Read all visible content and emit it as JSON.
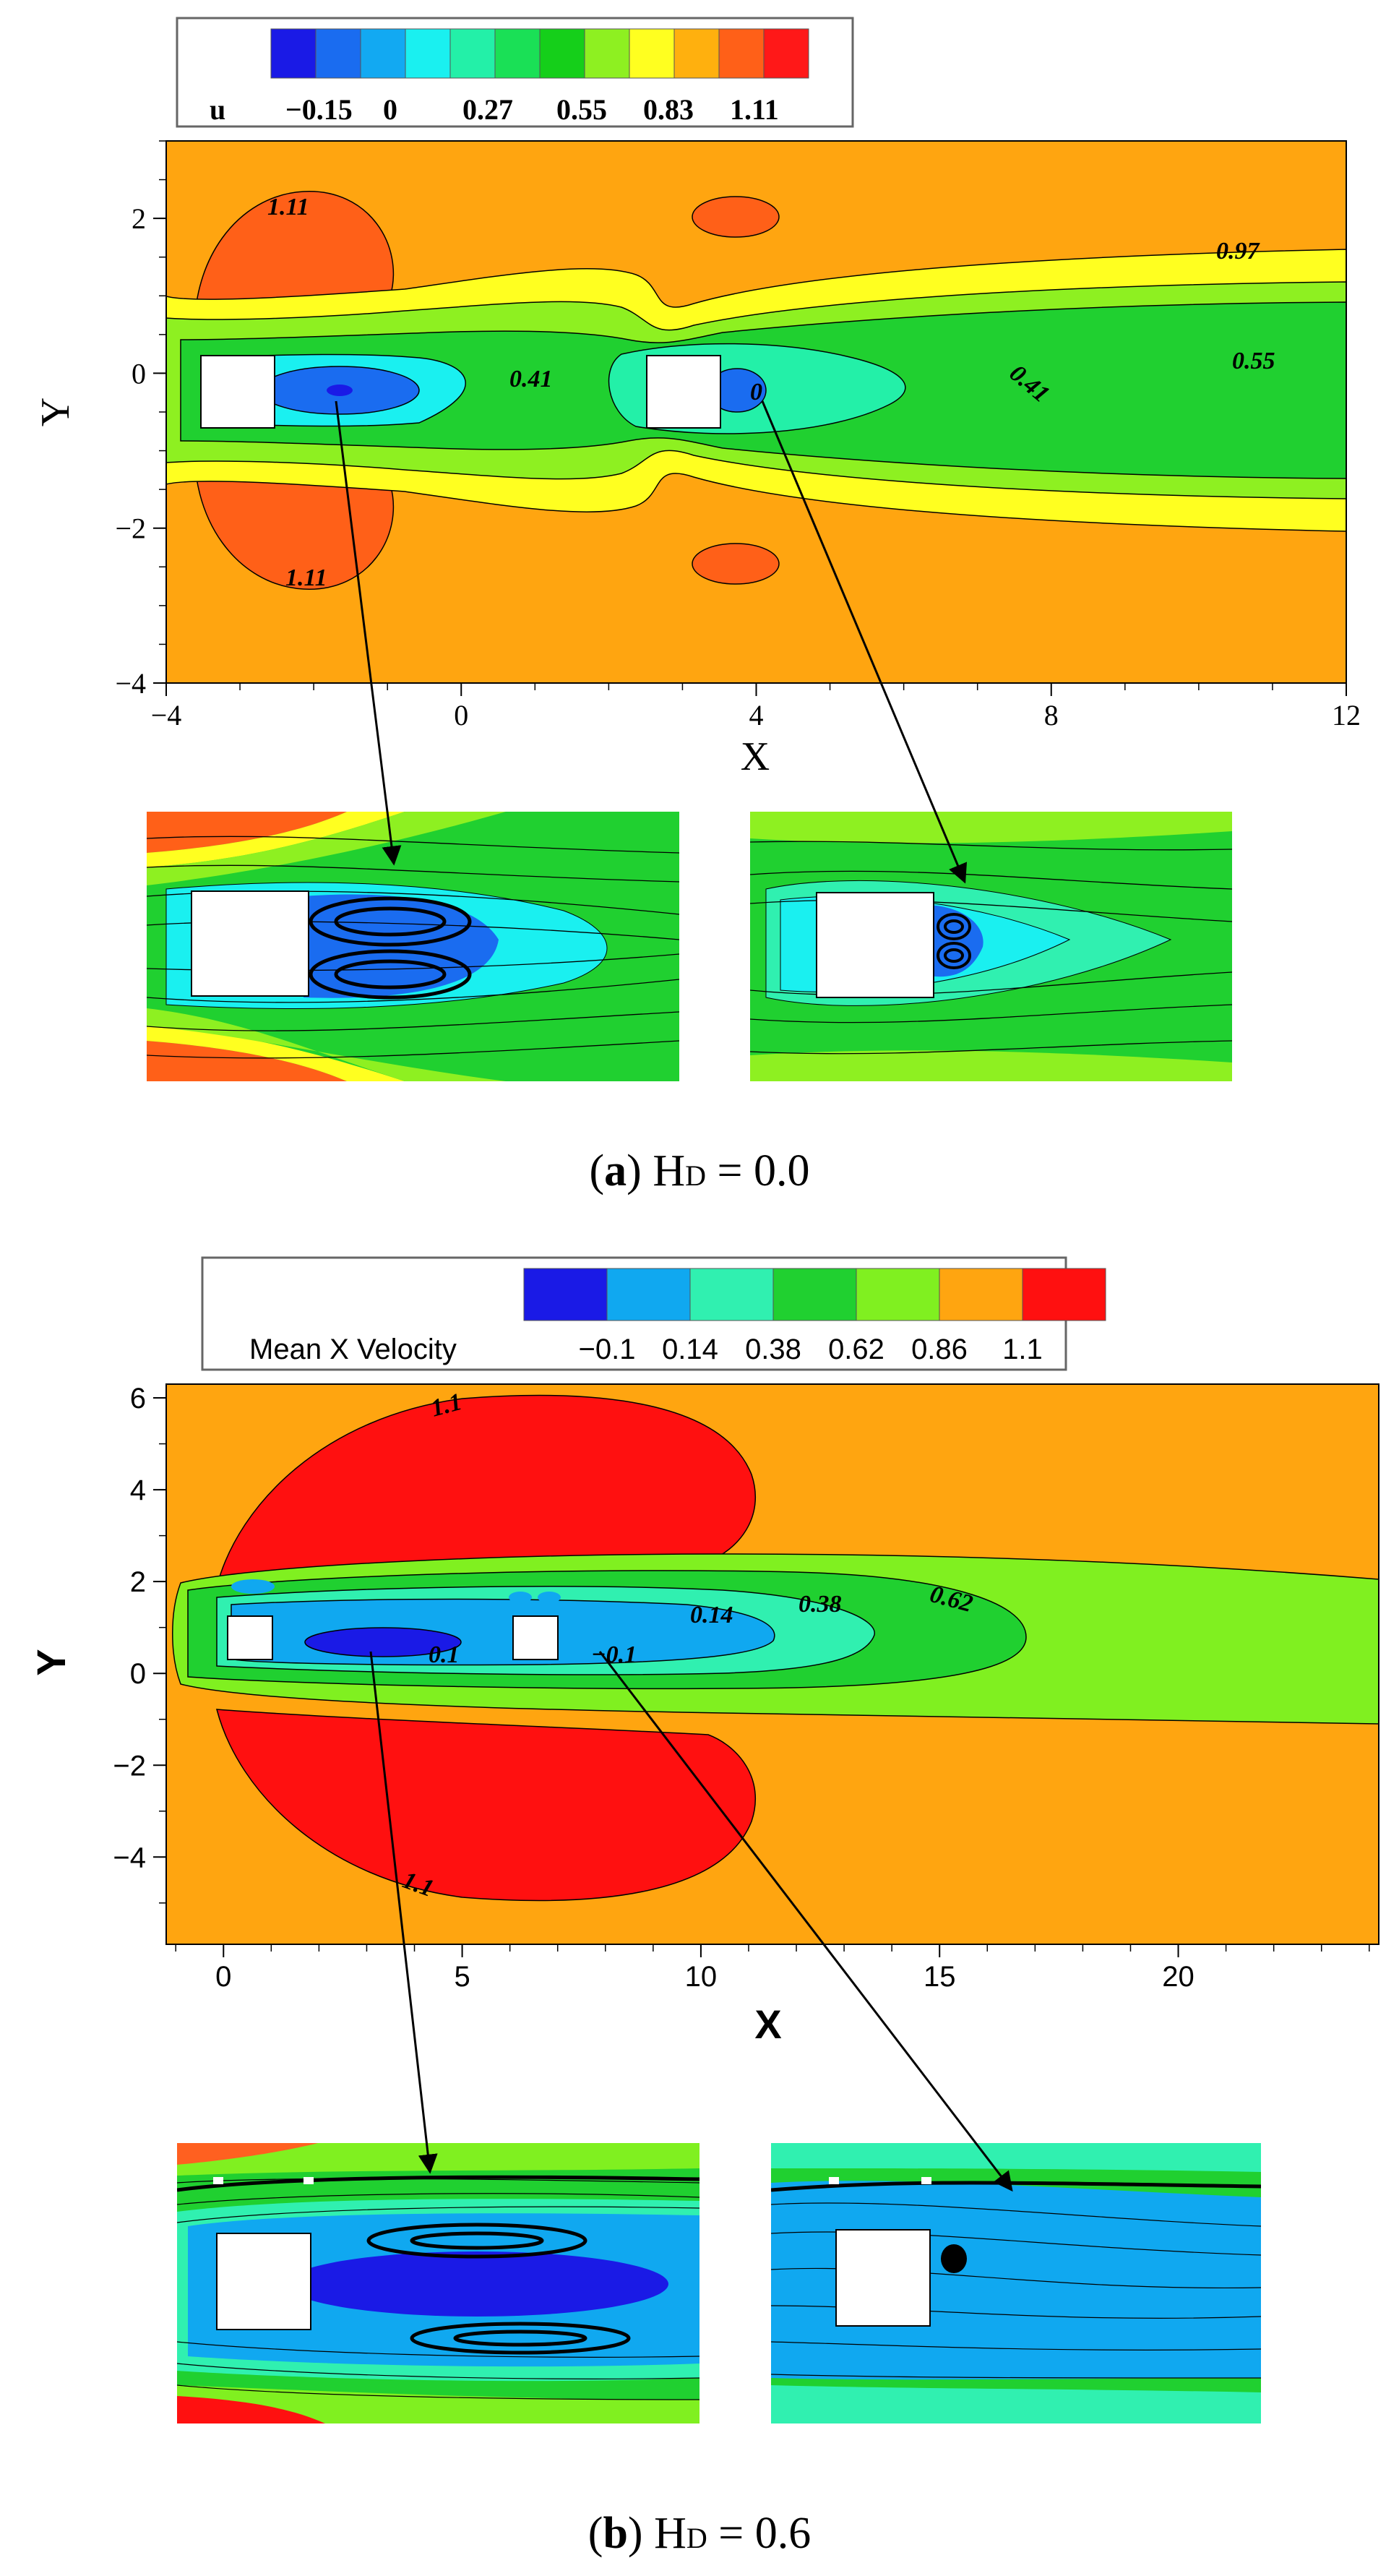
{
  "colors": {
    "c1": "#1a1ae6",
    "c2": "#1a6cf0",
    "c3": "#12a9f2",
    "c4": "#1af0f0",
    "c5": "#23f0a8",
    "c6": "#1ae056",
    "c7": "#15cf1a",
    "c8": "#8ef021",
    "c9": "#ffff20",
    "c10": "#ffb00e",
    "c11": "#ff6018",
    "c12": "#ff1818",
    "freestream": "#ffa510",
    "wake_green": "#20d030",
    "wake_lightgreen": "#80f020",
    "wake_cyan": "#30f0b0",
    "wake_blue": "#10a8f0",
    "deep_blue": "#1a1ae6",
    "red": "#ff1010",
    "orange_red": "#ff6020",
    "yellow": "#ffff20"
  },
  "chart_data": [
    {
      "type": "contour",
      "legend": {
        "variable": "u",
        "tick_labels": [
          "−0.15",
          "0",
          "0.27",
          "0.55",
          "0.83",
          "1.11"
        ]
      },
      "xlabel": "X",
      "ylabel": "Y",
      "xlim": [
        -4,
        12
      ],
      "ylim": [
        -4,
        3
      ],
      "xticks": [
        "−4",
        "0",
        "4",
        "8",
        "12"
      ],
      "yticks": [
        "−4",
        "−2",
        "0",
        "2"
      ],
      "contour_labels": [
        "1.11",
        "1.11",
        "0.41",
        "0",
        "0.97",
        "0.55",
        "0.41"
      ],
      "caption": {
        "letter": "a",
        "text": "H",
        "sub": "D",
        "value": "= 0.0"
      }
    },
    {
      "type": "contour",
      "legend": {
        "variable": "Mean X Velocity",
        "tick_labels": [
          "−0.1",
          "0.14",
          "0.38",
          "0.62",
          "0.86",
          "1.1"
        ]
      },
      "xlabel": "X",
      "ylabel": "Y",
      "xlim": [
        -1.2,
        24.2
      ],
      "ylim": [
        -5.9,
        6.3
      ],
      "xticks": [
        "0",
        "5",
        "10",
        "15",
        "20"
      ],
      "yticks": [
        "6",
        "4",
        "2",
        "0",
        "−2",
        "−4"
      ],
      "contour_labels": [
        "1.1",
        "0.1",
        "−0.1",
        "0.14",
        "0.38",
        "0.62",
        "1.1"
      ],
      "caption": {
        "letter": "b",
        "text": "H",
        "sub": "D",
        "value": "= 0.6"
      }
    }
  ]
}
